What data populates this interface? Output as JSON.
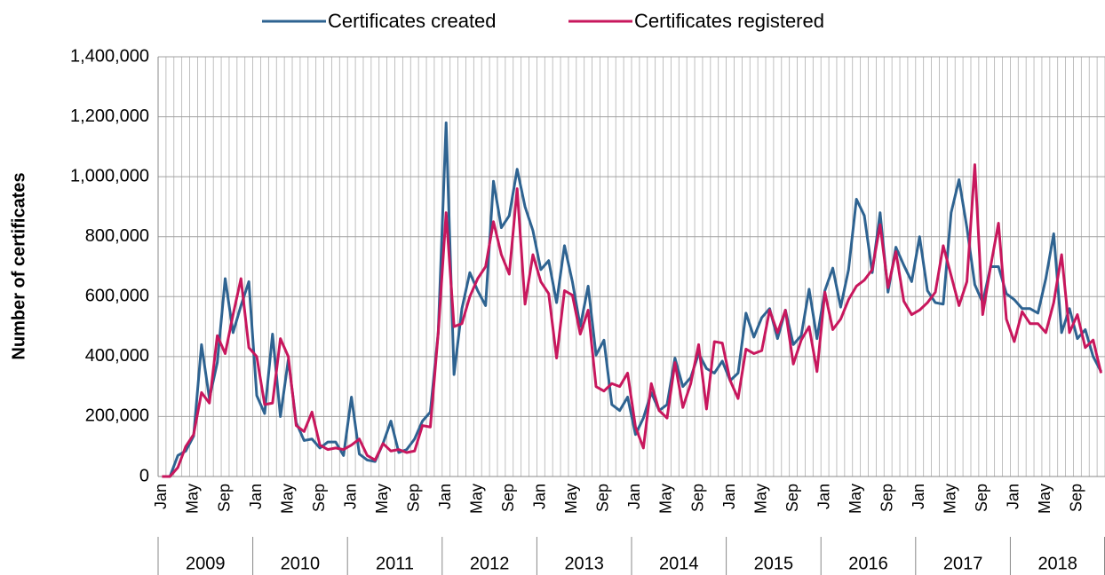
{
  "chart_data": {
    "type": "line",
    "ylabel": "Number of certificates",
    "categories": [
      "Jan",
      null,
      null,
      null,
      "May",
      null,
      null,
      null,
      "Sep",
      null,
      null,
      null,
      "Jan",
      null,
      null,
      null,
      "May",
      null,
      null,
      null,
      "Sep",
      null,
      null,
      null,
      "Jan",
      null,
      null,
      null,
      "May",
      null,
      null,
      null,
      "Sep",
      null,
      null,
      null,
      "Jan",
      null,
      null,
      null,
      "May",
      null,
      null,
      null,
      "Sep",
      null,
      null,
      null,
      "Jan",
      null,
      null,
      null,
      "May",
      null,
      null,
      null,
      "Sep",
      null,
      null,
      null,
      "Jan",
      null,
      null,
      null,
      "May",
      null,
      null,
      null,
      "Sep",
      null,
      null,
      null,
      "Jan",
      null,
      null,
      null,
      "May",
      null,
      null,
      null,
      "Sep",
      null,
      null,
      null,
      "Jan",
      null,
      null,
      null,
      "May",
      null,
      null,
      null,
      "Sep",
      null,
      null,
      null,
      "Jan",
      null,
      null,
      null,
      "May",
      null,
      null,
      null,
      "Sep",
      null,
      null,
      null,
      "Jan",
      null,
      null,
      null,
      "May",
      null,
      null,
      null,
      "Sep",
      null,
      null,
      null
    ],
    "years": [
      "2009",
      "2010",
      "2011",
      "2012",
      "2013",
      "2014",
      "2015",
      "2016",
      "2017",
      "2018"
    ],
    "series": [
      {
        "name": "Certificates created",
        "color": "#2e6391",
        "values": [
          0,
          0,
          70000,
          85000,
          135000,
          440000,
          260000,
          380000,
          660000,
          480000,
          570000,
          650000,
          270000,
          210000,
          475000,
          200000,
          390000,
          180000,
          120000,
          125000,
          95000,
          115000,
          115000,
          70000,
          265000,
          75000,
          55000,
          50000,
          110000,
          185000,
          80000,
          90000,
          125000,
          185000,
          215000,
          480000,
          1180000,
          340000,
          560000,
          680000,
          620000,
          570000,
          985000,
          830000,
          870000,
          1025000,
          900000,
          820000,
          690000,
          720000,
          580000,
          770000,
          650000,
          500000,
          635000,
          405000,
          455000,
          240000,
          220000,
          265000,
          140000,
          195000,
          280000,
          220000,
          240000,
          395000,
          300000,
          330000,
          410000,
          360000,
          345000,
          385000,
          320000,
          345000,
          545000,
          465000,
          530000,
          560000,
          460000,
          555000,
          440000,
          470000,
          625000,
          460000,
          620000,
          695000,
          565000,
          690000,
          925000,
          870000,
          680000,
          880000,
          615000,
          765000,
          705000,
          650000,
          800000,
          620000,
          580000,
          575000,
          880000,
          990000,
          830000,
          640000,
          580000,
          700000,
          700000,
          610000,
          590000,
          560000,
          560000,
          545000,
          660000,
          810000,
          480000,
          560000,
          460000,
          490000,
          400000,
          350000
        ]
      },
      {
        "name": "Certificates registered",
        "color": "#c8175d",
        "values": [
          0,
          0,
          30000,
          100000,
          140000,
          280000,
          245000,
          470000,
          410000,
          540000,
          660000,
          430000,
          400000,
          240000,
          245000,
          460000,
          400000,
          170000,
          150000,
          215000,
          105000,
          90000,
          95000,
          90000,
          105000,
          125000,
          70000,
          55000,
          110000,
          85000,
          90000,
          80000,
          85000,
          170000,
          165000,
          480000,
          880000,
          500000,
          510000,
          600000,
          660000,
          700000,
          850000,
          740000,
          675000,
          960000,
          575000,
          740000,
          650000,
          610000,
          395000,
          620000,
          605000,
          475000,
          555000,
          300000,
          285000,
          310000,
          300000,
          345000,
          165000,
          95000,
          310000,
          220000,
          195000,
          380000,
          230000,
          310000,
          440000,
          225000,
          450000,
          445000,
          320000,
          260000,
          425000,
          410000,
          420000,
          555000,
          480000,
          555000,
          375000,
          455000,
          500000,
          350000,
          615000,
          490000,
          525000,
          590000,
          635000,
          655000,
          690000,
          840000,
          630000,
          750000,
          585000,
          540000,
          555000,
          580000,
          615000,
          770000,
          670000,
          570000,
          650000,
          1040000,
          540000,
          700000,
          845000,
          525000,
          450000,
          550000,
          510000,
          510000,
          480000,
          580000,
          740000,
          480000,
          540000,
          430000,
          455000,
          345000
        ]
      }
    ],
    "ylim": [
      0,
      1400000
    ],
    "yticks": [
      0,
      {
        "value": 200000,
        "label": "200,000"
      },
      {
        "value": 400000,
        "label": "400,000"
      },
      {
        "value": 600000,
        "label": "600,000"
      },
      {
        "value": 800000,
        "label": "800,000"
      },
      {
        "value": 1000000,
        "label": "1,000,000"
      },
      {
        "value": 1200000,
        "label": "1,200,000"
      },
      {
        "value": 1400000,
        "label": "1,400,000"
      }
    ],
    "grid": true,
    "legend": "top"
  }
}
